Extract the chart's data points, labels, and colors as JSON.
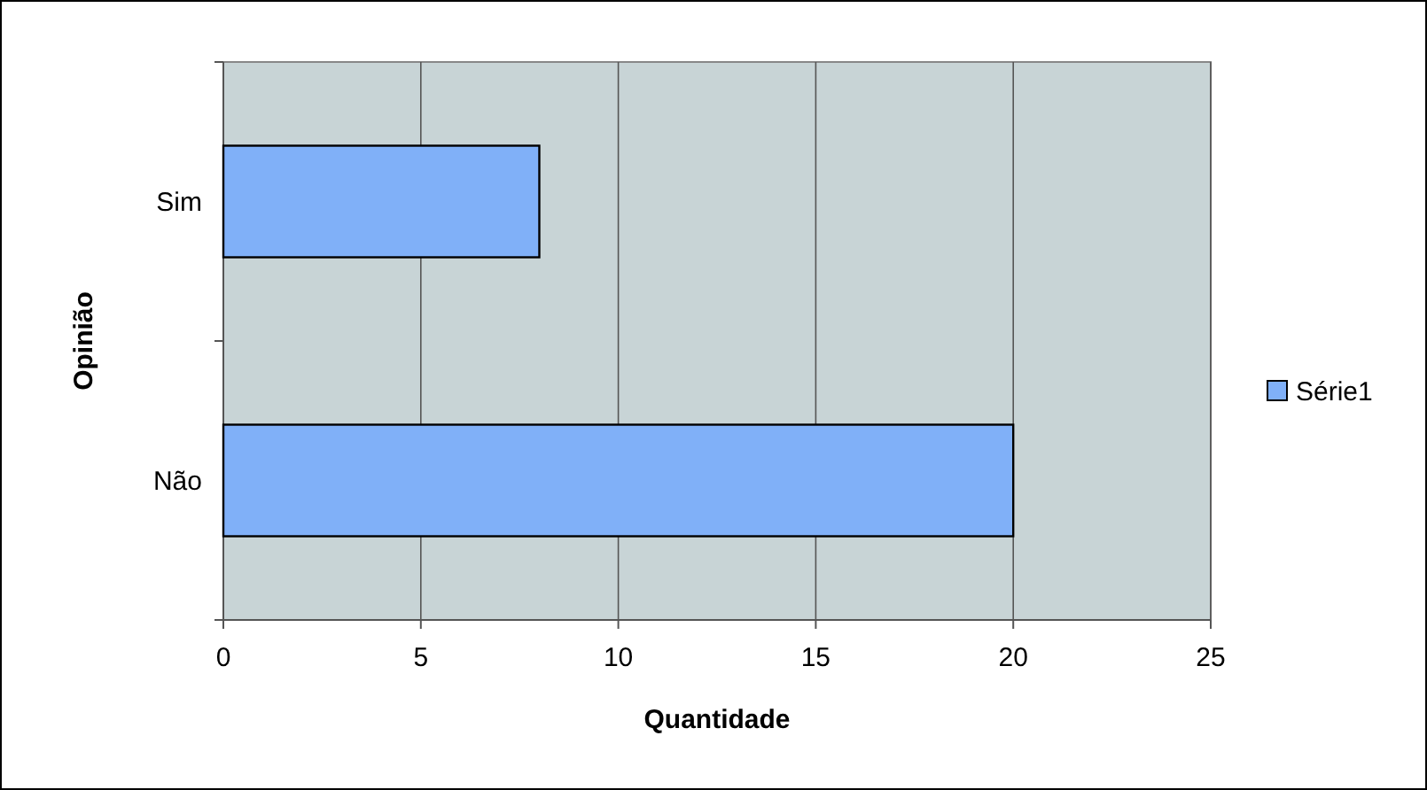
{
  "chart_data": {
    "type": "bar",
    "orientation": "horizontal",
    "categories": [
      "Sim",
      "Não"
    ],
    "series": [
      {
        "name": "Série1",
        "color": "#80b0f8",
        "values": [
          8,
          20
        ]
      }
    ],
    "xlim": [
      0,
      25
    ],
    "xticks": [
      0,
      5,
      10,
      15,
      20,
      25
    ],
    "xlabel": "Quantidade",
    "ylabel": "Opinião",
    "grid": "x",
    "legend": "right"
  }
}
